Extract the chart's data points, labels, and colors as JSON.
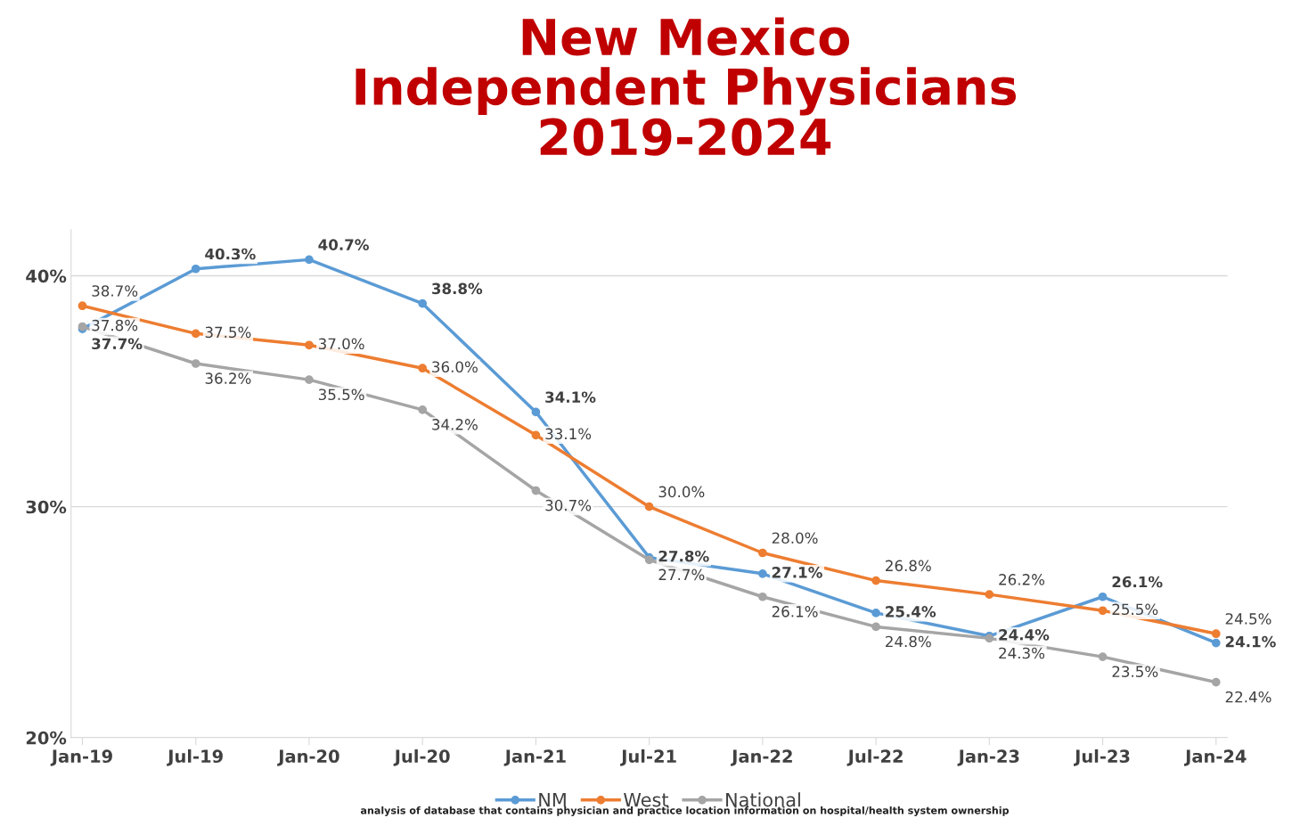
{
  "chart_data": {
    "type": "line",
    "title": "New Mexico\nIndependent Physicians\n2019-2024",
    "categories": [
      "Jan-19",
      "Jul-19",
      "Jan-20",
      "Jul-20",
      "Jan-21",
      "Jul-21",
      "Jan-22",
      "Jul-22",
      "Jan-23",
      "Jul-23",
      "Jan-24"
    ],
    "series": [
      {
        "name": "NM",
        "color": "#5b9bd5",
        "values": [
          37.7,
          40.3,
          40.7,
          38.8,
          34.1,
          27.8,
          27.1,
          25.4,
          24.4,
          26.1,
          24.1
        ],
        "value_labels": [
          "37.7%",
          "40.3%",
          "40.7%",
          "38.8%",
          "34.1%",
          "27.8%",
          "27.1%",
          "25.4%",
          "24.4%",
          "26.1%",
          "24.1%"
        ]
      },
      {
        "name": "West",
        "color": "#ed7d31",
        "values": [
          38.7,
          37.5,
          37.0,
          36.0,
          33.1,
          30.0,
          28.0,
          26.8,
          26.2,
          25.5,
          24.5
        ],
        "value_labels": [
          "38.7%",
          "37.5%",
          "37.0%",
          "36.0%",
          "33.1%",
          "30.0%",
          "28.0%",
          "26.8%",
          "26.2%",
          "25.5%",
          "24.5%"
        ]
      },
      {
        "name": "National",
        "color": "#a5a5a5",
        "values": [
          37.8,
          36.2,
          35.5,
          34.2,
          30.7,
          27.7,
          26.1,
          24.8,
          24.3,
          23.5,
          22.4
        ],
        "value_labels": [
          "37.8%",
          "36.2%",
          "35.5%",
          "34.2%",
          "30.7%",
          "27.7%",
          "26.1%",
          "24.8%",
          "24.3%",
          "23.5%",
          "22.4%"
        ]
      }
    ],
    "ylim": [
      20,
      42
    ],
    "yticks": [
      {
        "value": 20,
        "label": "20%"
      },
      {
        "value": 30,
        "label": "30%"
      },
      {
        "value": 40,
        "label": "40%"
      }
    ],
    "grid": "y",
    "legend": "bottom",
    "marker": "circle",
    "line_style": "solid",
    "annotations": [
      "analysis of database that contains physician and practice location information on hospital/health system ownership"
    ]
  }
}
